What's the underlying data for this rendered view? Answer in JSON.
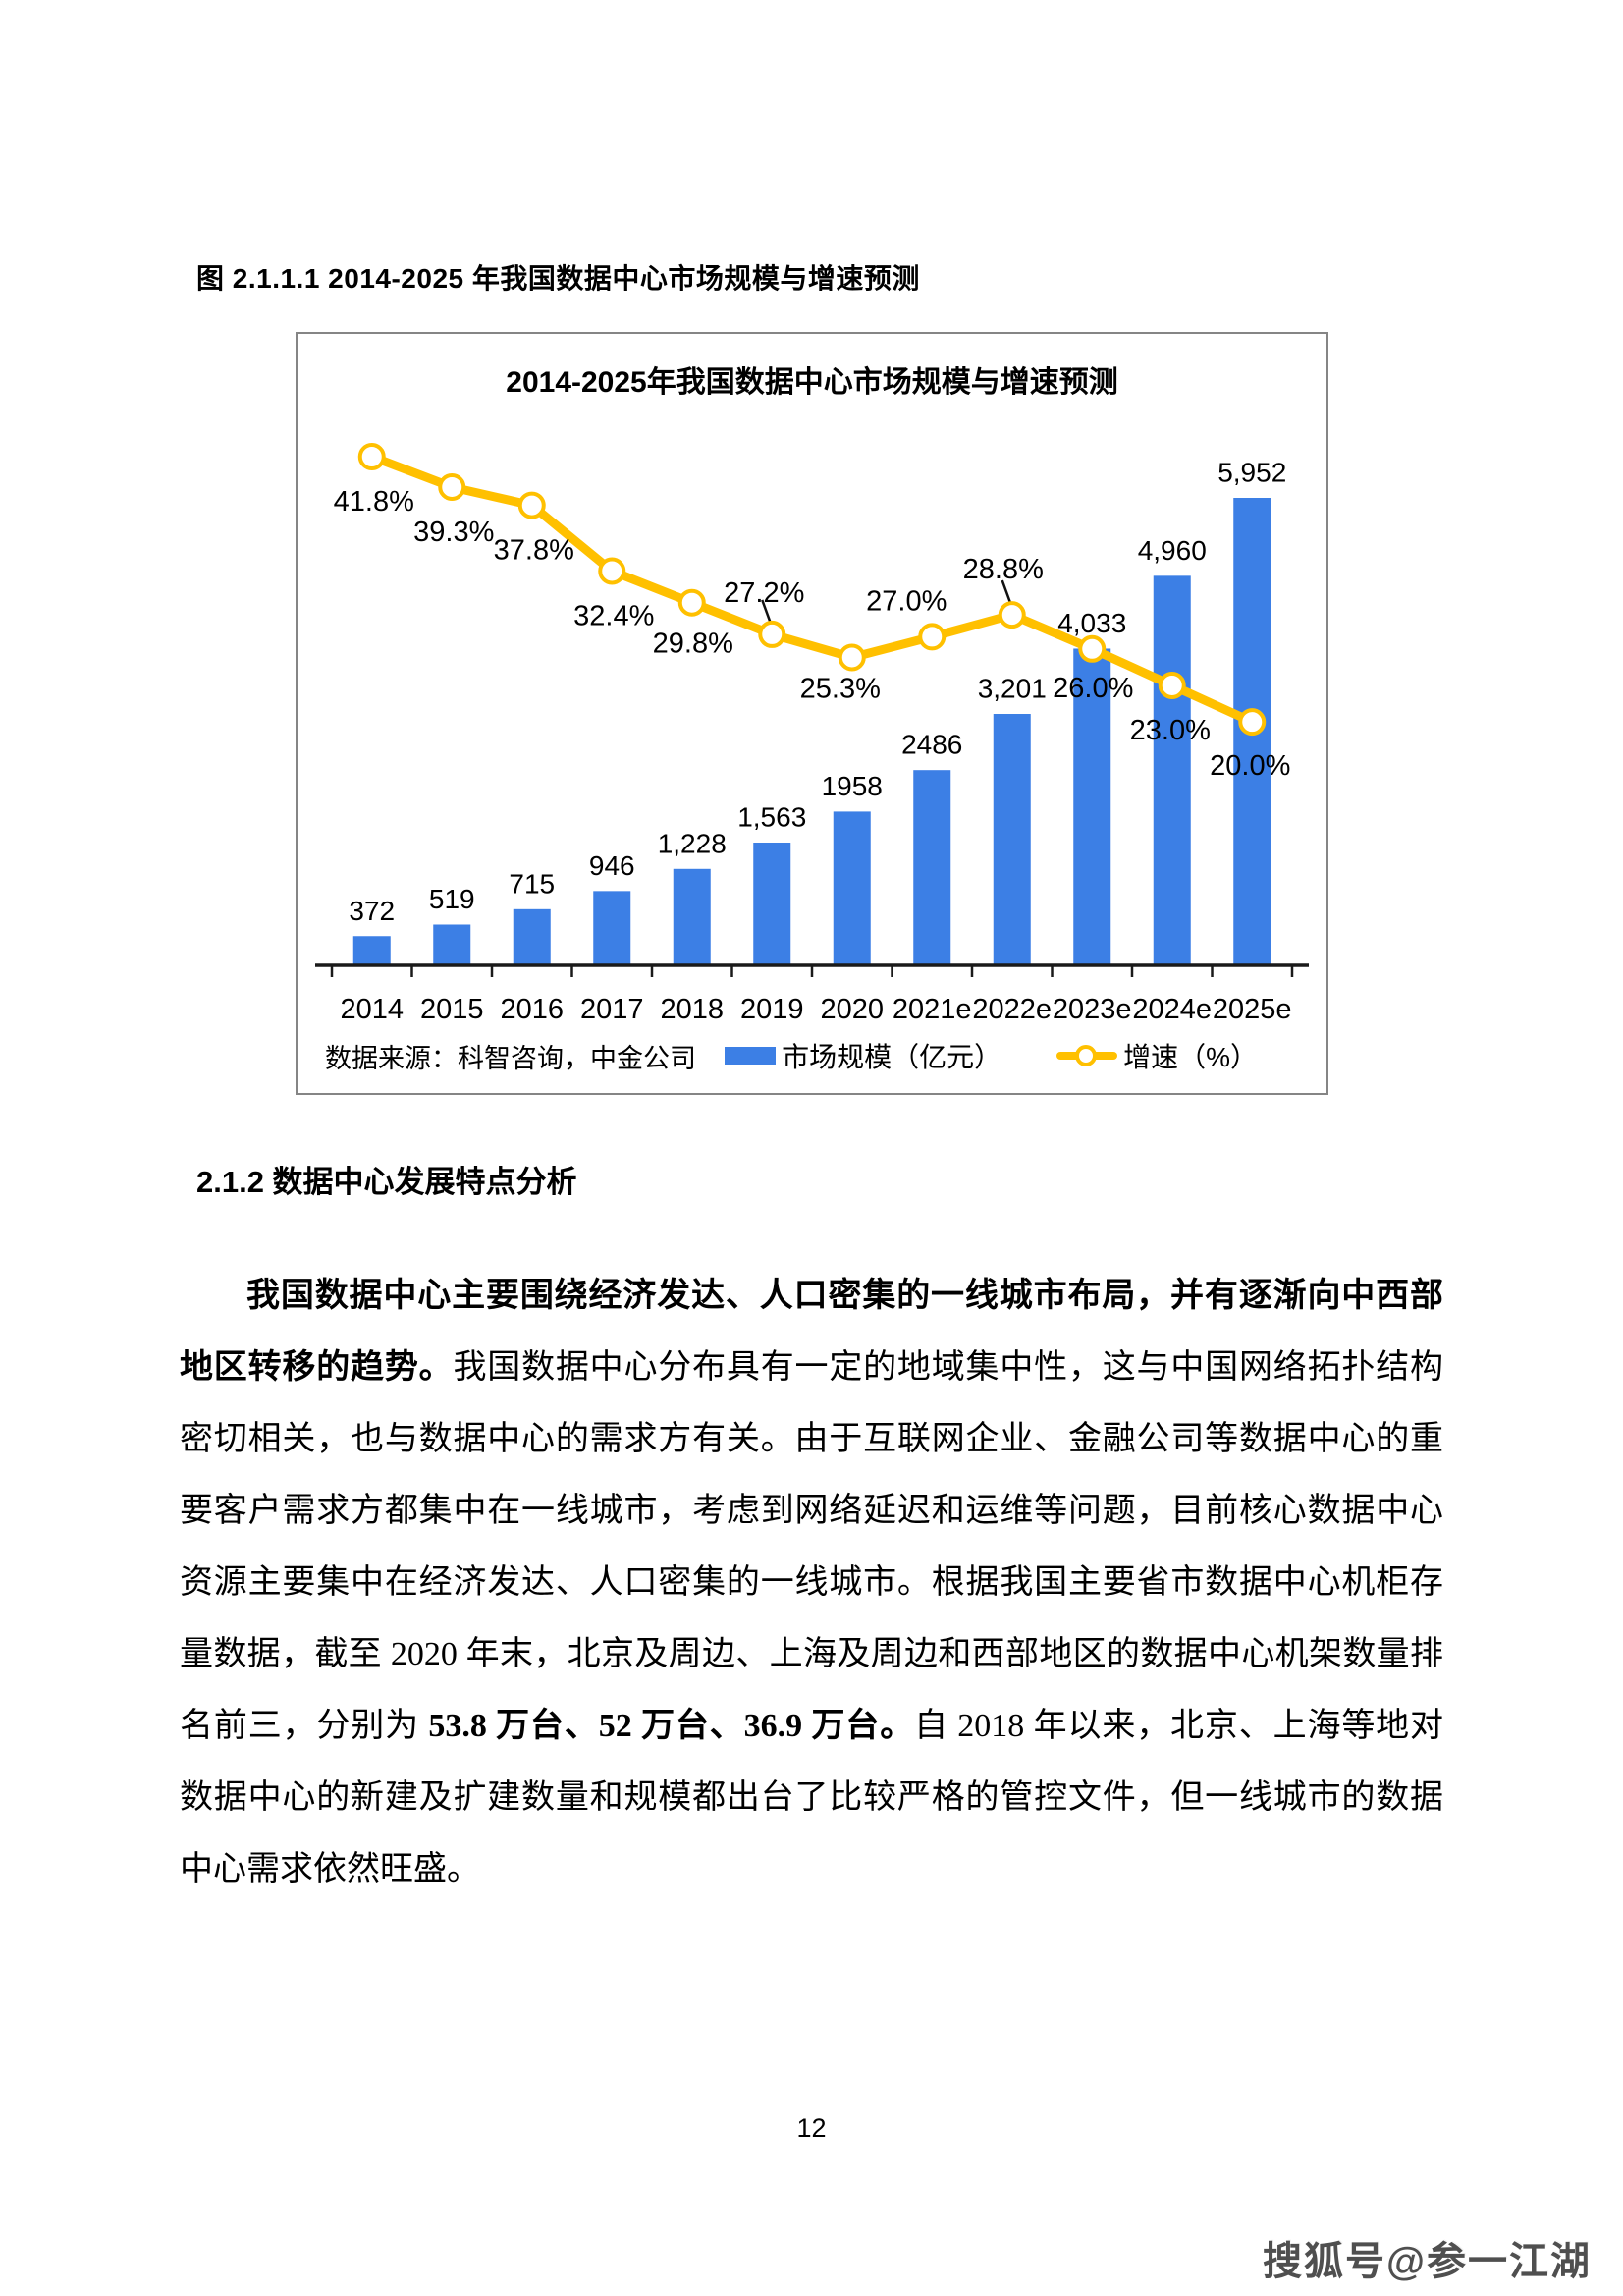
{
  "page": {
    "figure_caption": "图 2.1.1.1 2014-2025 年我国数据中心市场规模与增速预测",
    "section_heading": "2.1.2 数据中心发展特点分析",
    "paragraph": {
      "lead_bold": "我国数据中心主要围绕经济发达、人口密集的一线城市布局，并有逐渐向中西部地区转移的趋势。",
      "body_1": "我国数据中心分布具有一定的地域集中性，这与中国网络拓扑结构密切相关，也与数据中心的需求方有关。由于互联网企业、金融公司等数据中心的重要客户需求方都集中在一线城市，考虑到网络延迟和运维等问题，目前核心数据中心资源主要集中在经济发达、人口密集的一线城市。根据我国主要省市数据中心机柜存量数据，截至 2020 年末，北京及周边、上海及周边和西部地区的数据中心机架数量排名前三，分别为 ",
      "stats_bold": "53.8 万台、52 万台、36.9 万台。",
      "body_2": "自 2018 年以来，北京、上海等地对数据中心的新建及扩建数量和规模都出台了比较严格的管控文件，但一线城市的数据中心需求依然旺盛。"
    },
    "page_number": "12",
    "watermark": "搜狐号@参一江湖"
  },
  "chart_data": {
    "type": "bar",
    "subtype": "bar-line-combo",
    "title": "2014-2025年我国数据中心市场规模与增速预测",
    "categories": [
      "2014",
      "2015",
      "2016",
      "2017",
      "2018",
      "2019",
      "2020",
      "2021e",
      "2022e",
      "2023e",
      "2024e",
      "2025e"
    ],
    "series": [
      {
        "name": "市场规模（亿元）",
        "chart_type": "bar",
        "color": "#3C7FE5",
        "values": [
          372,
          519,
          715,
          946,
          1228,
          1563,
          1958,
          2486,
          3201,
          4033,
          4960,
          5952
        ],
        "labels": [
          "372",
          "519",
          "715",
          "946",
          "1,228",
          "1,563",
          "1958",
          "2486",
          "3,201",
          "4,033",
          "4,960",
          "5,952"
        ]
      },
      {
        "name": "增速（%）",
        "chart_type": "line",
        "color": "#FFC000",
        "marker_fill": "#FFFFFF",
        "values": [
          41.8,
          39.3,
          37.8,
          32.4,
          29.8,
          27.2,
          25.3,
          27.0,
          28.8,
          26.0,
          23.0,
          20.0
        ],
        "labels": [
          "41.8%",
          "39.3%",
          "37.8%",
          "32.4%",
          "29.8%",
          "27.2%",
          "25.3%",
          "27.0%",
          "28.8%",
          "26.0%",
          "23.0%",
          "20.0%"
        ]
      }
    ],
    "y_axis_primary": {
      "min": 0,
      "max": 7000,
      "visible": false
    },
    "y_axis_secondary": {
      "min": 0,
      "max": 46,
      "unit": "%",
      "visible": false
    },
    "grid": false,
    "legend_position": "bottom",
    "source_note": "数据来源：科智咨询，中金公司"
  }
}
